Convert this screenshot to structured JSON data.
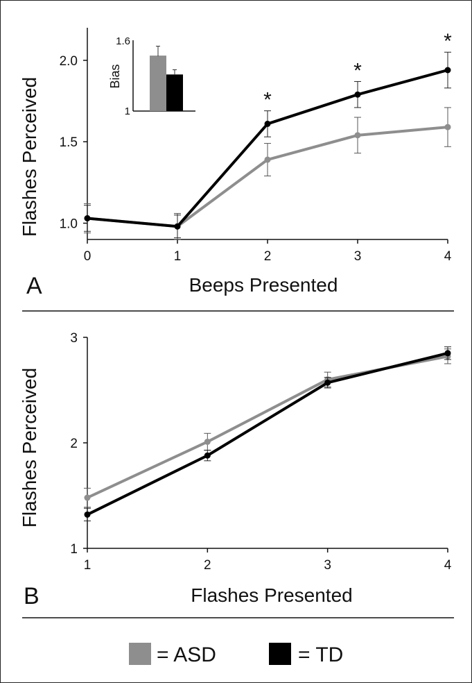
{
  "legend": {
    "asd_label": "= ASD",
    "td_label": "= TD",
    "asd_color": "#8e8e8e",
    "td_color": "#000000"
  },
  "chart_data": [
    {
      "id": "A",
      "type": "line",
      "panel_label": "A",
      "xlabel": "Beeps Presented",
      "ylabel": "Flashes Perceived",
      "x": [
        0,
        1,
        2,
        3,
        4
      ],
      "x_tick_labels": [
        "0",
        "1",
        "2",
        "3",
        "4"
      ],
      "xlim": [
        0,
        4
      ],
      "ylim": [
        0.9,
        2.2
      ],
      "y_ticks": [
        1.0,
        1.5,
        2.0
      ],
      "y_tick_labels": [
        "1.0",
        "1.5",
        "2.0"
      ],
      "series": [
        {
          "name": "ASD",
          "color": "#8e8e8e",
          "values": [
            1.03,
            0.98,
            1.39,
            1.54,
            1.59
          ],
          "errors": [
            0.09,
            0.08,
            0.1,
            0.11,
            0.12
          ]
        },
        {
          "name": "TD",
          "color": "#000000",
          "values": [
            1.03,
            0.98,
            1.61,
            1.79,
            1.94
          ],
          "errors": [
            0.08,
            0.07,
            0.08,
            0.08,
            0.11
          ]
        }
      ],
      "significance_marks": [
        {
          "x": 2,
          "label": "*"
        },
        {
          "x": 3,
          "label": "*"
        },
        {
          "x": 4,
          "label": "*"
        }
      ],
      "inset": {
        "type": "bar",
        "ylabel": "Bias",
        "ylim": [
          1,
          1.6
        ],
        "y_tick_labels": [
          "1",
          "1.6"
        ],
        "series": [
          {
            "name": "ASD",
            "color": "#8e8e8e",
            "value": 1.47,
            "error": 0.08
          },
          {
            "name": "TD",
            "color": "#000000",
            "value": 1.31,
            "error": 0.04
          }
        ]
      }
    },
    {
      "id": "B",
      "type": "line",
      "panel_label": "B",
      "xlabel": "Flashes Presented",
      "ylabel": "Flashes Perceived",
      "x": [
        1,
        2,
        3,
        4
      ],
      "x_tick_labels": [
        "1",
        "2",
        "3",
        "4"
      ],
      "xlim": [
        1,
        4
      ],
      "ylim": [
        1,
        3
      ],
      "y_ticks": [
        1,
        2,
        3
      ],
      "y_tick_labels": [
        "1",
        "2",
        "3"
      ],
      "series": [
        {
          "name": "ASD",
          "color": "#8e8e8e",
          "values": [
            1.48,
            2.01,
            2.6,
            2.82
          ],
          "errors": [
            0.09,
            0.08,
            0.07,
            0.07
          ]
        },
        {
          "name": "TD",
          "color": "#000000",
          "values": [
            1.32,
            1.88,
            2.57,
            2.85
          ],
          "errors": [
            0.06,
            0.05,
            0.05,
            0.06
          ]
        }
      ]
    }
  ]
}
